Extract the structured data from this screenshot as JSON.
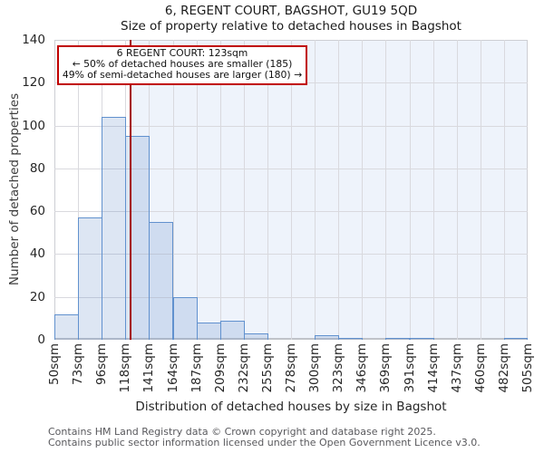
{
  "title": "6, REGENT COURT, BAGSHOT, GU19 5QD",
  "subtitle": "Size of property relative to detached houses in Bagshot",
  "annotation": {
    "line1": "6 REGENT COURT: 123sqm",
    "line2": "← 50% of detached houses are smaller (185)",
    "line3": "49% of semi-detached houses are larger (180) →"
  },
  "footer": {
    "line1": "Contains HM Land Registry data © Crown copyright and database right 2025.",
    "line2": "Contains public sector information licensed under the Open Government Licence v3.0."
  },
  "chart_data": {
    "type": "bar",
    "title": "6, REGENT COURT, BAGSHOT, GU19 5QD — Size of property relative to detached houses in Bagshot",
    "xlabel": "Distribution of detached houses by size in Bagshot",
    "ylabel": "Number of detached properties",
    "bin_edges_sqm": [
      50,
      73,
      96,
      118,
      141,
      164,
      187,
      209,
      232,
      255,
      278,
      300,
      323,
      346,
      369,
      391,
      414,
      437,
      460,
      482,
      505
    ],
    "x_tick_labels": [
      "50sqm",
      "73sqm",
      "96sqm",
      "118sqm",
      "141sqm",
      "164sqm",
      "187sqm",
      "209sqm",
      "232sqm",
      "255sqm",
      "278sqm",
      "300sqm",
      "323sqm",
      "346sqm",
      "369sqm",
      "391sqm",
      "414sqm",
      "437sqm",
      "460sqm",
      "482sqm",
      "505sqm"
    ],
    "values": [
      12,
      57,
      104,
      95,
      55,
      20,
      8,
      9,
      3,
      0,
      0,
      2,
      1,
      0,
      1,
      1,
      0,
      0,
      0,
      1
    ],
    "ylim": [
      0,
      140
    ],
    "yticks": [
      0,
      20,
      40,
      60,
      80,
      100,
      120,
      140
    ],
    "grid": true,
    "legend": "none",
    "marker_sqm": 123,
    "marker_label": "6 REGENT COURT: 123sqm",
    "colors": {
      "bar_fill": "rgba(99,141,201,0.22)",
      "bar_edge": "#6191ce",
      "marker_line": "#a40000",
      "annotation_border": "#c00000",
      "shade_right_of_marker": "#eef3fb",
      "gridline": "#d9d9de"
    }
  }
}
